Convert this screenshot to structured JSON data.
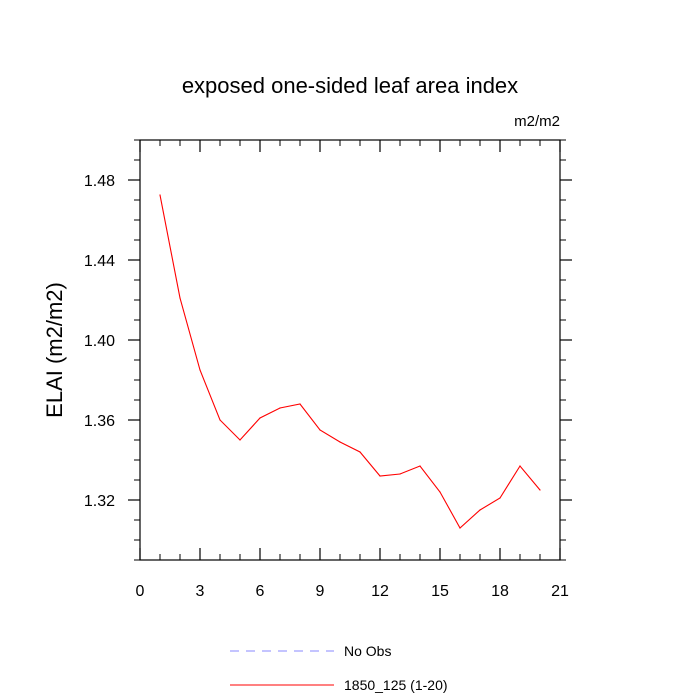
{
  "chart_data": {
    "type": "line",
    "title": "exposed one-sided leaf area index",
    "units_label": "m2/m2",
    "xlabel": "",
    "ylabel": "ELAI  (m2/m2)",
    "xlim": [
      0,
      21
    ],
    "ylim": [
      1.29,
      1.5
    ],
    "x_ticks": [
      0,
      3,
      6,
      9,
      12,
      15,
      18,
      21
    ],
    "x_tick_labels": [
      "0",
      "3",
      "6",
      "9",
      "12",
      "15",
      "18",
      "21"
    ],
    "y_ticks": [
      1.32,
      1.36,
      1.4,
      1.44,
      1.48
    ],
    "y_tick_labels": [
      "1.32",
      "1.36",
      "1.40",
      "1.44",
      "1.48"
    ],
    "grid": false,
    "legend_position": "bottom",
    "series": [
      {
        "name": "1850_125 (1-20)",
        "color": "#ff0000",
        "dash": "solid",
        "x": [
          1,
          2,
          3,
          4,
          5,
          6,
          7,
          8,
          9,
          10,
          11,
          12,
          13,
          14,
          15,
          16,
          17,
          18,
          19,
          20
        ],
        "values": [
          1.4725,
          1.421,
          1.385,
          1.36,
          1.35,
          1.361,
          1.366,
          1.368,
          1.355,
          1.349,
          1.344,
          1.332,
          1.333,
          1.337,
          1.324,
          1.306,
          1.315,
          1.321,
          1.337,
          1.325
        ]
      }
    ],
    "legend": [
      {
        "label": "No Obs",
        "color": "#8888ff",
        "dash": "dashed"
      },
      {
        "label": "1850_125 (1-20)",
        "color": "#ff0000",
        "dash": "solid"
      }
    ]
  }
}
